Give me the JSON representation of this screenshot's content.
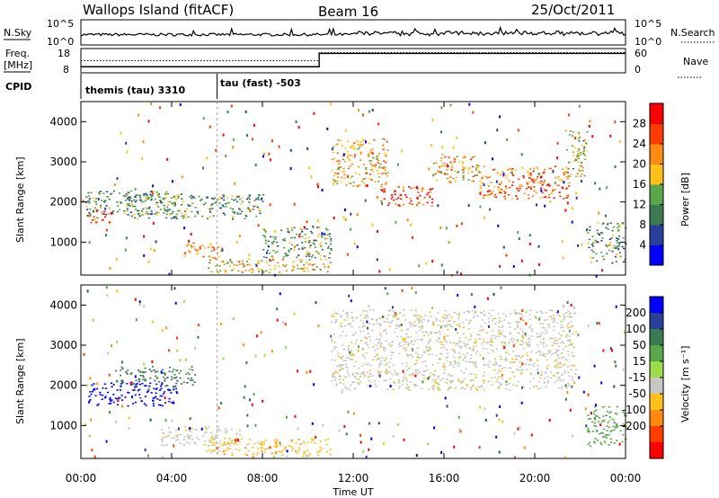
{
  "header": {
    "station": "Wallops Island (fitACF)",
    "beam": "Beam 16",
    "date": "25/Oct/2011"
  },
  "top_panels": {
    "nsky_label": "N.Sky",
    "nsky_ticks": [
      "10^5",
      "10^0"
    ],
    "nsearch_label": "N.Search",
    "nsearch_ticks": [
      "10^5",
      "10^0"
    ],
    "freq_label": "Freq.",
    "freq_unit": "[MHz]",
    "freq_ticks": [
      "18",
      "8"
    ],
    "nave_label": "Nave",
    "nave_ticks": [
      "60",
      "0"
    ],
    "cpid_label": "CPID",
    "cpid_segments": [
      "themis (tau) 3310",
      "tau (fast) -503"
    ]
  },
  "time_axis": {
    "label": "Time UT",
    "ticks": [
      "00:00",
      "04:00",
      "08:00",
      "12:00",
      "16:00",
      "20:00",
      "00:00"
    ]
  },
  "power_panel": {
    "ylabel": "Slant Range [km]",
    "yticks": [
      "1000",
      "2000",
      "3000",
      "4000"
    ],
    "colorbar_label": "Power [dB]",
    "colorbar_ticks": [
      "4",
      "8",
      "12",
      "16",
      "20",
      "24",
      "28"
    ],
    "colors": [
      "#0000ff",
      "#2a3f9a",
      "#3c7a52",
      "#5aa64a",
      "#ffc01a",
      "#ff8a10",
      "#ff3c00",
      "#ff0000"
    ]
  },
  "velocity_panel": {
    "ylabel": "Slant Range [km]",
    "yticks": [
      "1000",
      "2000",
      "3000",
      "4000"
    ],
    "colorbar_label": "Velocity [m s⁻¹]",
    "colorbar_ticks": [
      "200",
      "100",
      "50",
      "15",
      "-15",
      "-50",
      "-100",
      "-200"
    ],
    "colors": [
      "#0000ff",
      "#2a3f9a",
      "#3c7a52",
      "#5aa64a",
      "#9ddc4a",
      "#c8c8c0",
      "#ffc01a",
      "#ff8a10",
      "#ff3c00",
      "#ff0000"
    ]
  },
  "chart_data": {
    "type": "heatmap",
    "title": "Wallops Island (fitACF) Beam 16 25/Oct/2011",
    "x_range_hours": [
      0,
      24
    ],
    "slant_range_km": [
      180,
      4500
    ],
    "cpid_change_hour": 6,
    "freq_mhz": [
      {
        "from": 0,
        "to": 6,
        "value": 10.5
      },
      {
        "from": 6,
        "to": 10.5,
        "value": 10.5
      },
      {
        "from": 10.5,
        "to": 24,
        "value": 16.0
      }
    ],
    "nave": [
      {
        "from": 0,
        "to": 10.5,
        "value": 30
      },
      {
        "from": 10.5,
        "to": 24,
        "value": 50
      }
    ],
    "power_regions_db": [
      {
        "t0": 0.2,
        "t1": 1.3,
        "r0": 1500,
        "r1": 1900,
        "value": 28
      },
      {
        "t0": 0.2,
        "t1": 4.5,
        "r0": 1700,
        "r1": 2300,
        "value": 14
      },
      {
        "t0": 2.0,
        "t1": 8.0,
        "r0": 1600,
        "r1": 2200,
        "value": 13
      },
      {
        "t0": 4.5,
        "t1": 6.2,
        "r0": 600,
        "r1": 1000,
        "value": 22
      },
      {
        "t0": 5.5,
        "t1": 11.0,
        "r0": 250,
        "r1": 600,
        "value": 21
      },
      {
        "t0": 8.0,
        "t1": 11.0,
        "r0": 600,
        "r1": 1400,
        "value": 14
      },
      {
        "t0": 11.0,
        "t1": 13.5,
        "r0": 2400,
        "r1": 3600,
        "value": 20
      },
      {
        "t0": 13.2,
        "t1": 15.5,
        "r0": 1900,
        "r1": 2400,
        "value": 28
      },
      {
        "t0": 15.5,
        "t1": 17.5,
        "r0": 2500,
        "r1": 3200,
        "value": 20
      },
      {
        "t0": 17.5,
        "t1": 21.5,
        "r0": 2100,
        "r1": 2900,
        "value": 24
      },
      {
        "t0": 21.3,
        "t1": 22.3,
        "r0": 2600,
        "r1": 3800,
        "value": 18
      },
      {
        "t0": 22.3,
        "t1": 24.0,
        "r0": 500,
        "r1": 1500,
        "value": 14
      }
    ],
    "velocity_regions_ms": [
      {
        "t0": 0.3,
        "t1": 4.2,
        "r0": 1500,
        "r1": 2100,
        "value": 200
      },
      {
        "t0": 1.5,
        "t1": 5.0,
        "r0": 2000,
        "r1": 2500,
        "value": 50
      },
      {
        "t0": 3.5,
        "t1": 7.0,
        "r0": 500,
        "r1": 1000,
        "value": 0
      },
      {
        "t0": 5.5,
        "t1": 11.0,
        "r0": 250,
        "r1": 700,
        "value": -60
      },
      {
        "t0": 11.0,
        "t1": 21.8,
        "r0": 1900,
        "r1": 3900,
        "value": 0
      },
      {
        "t0": 22.3,
        "t1": 24.0,
        "r0": 500,
        "r1": 1500,
        "value": 30
      }
    ]
  }
}
